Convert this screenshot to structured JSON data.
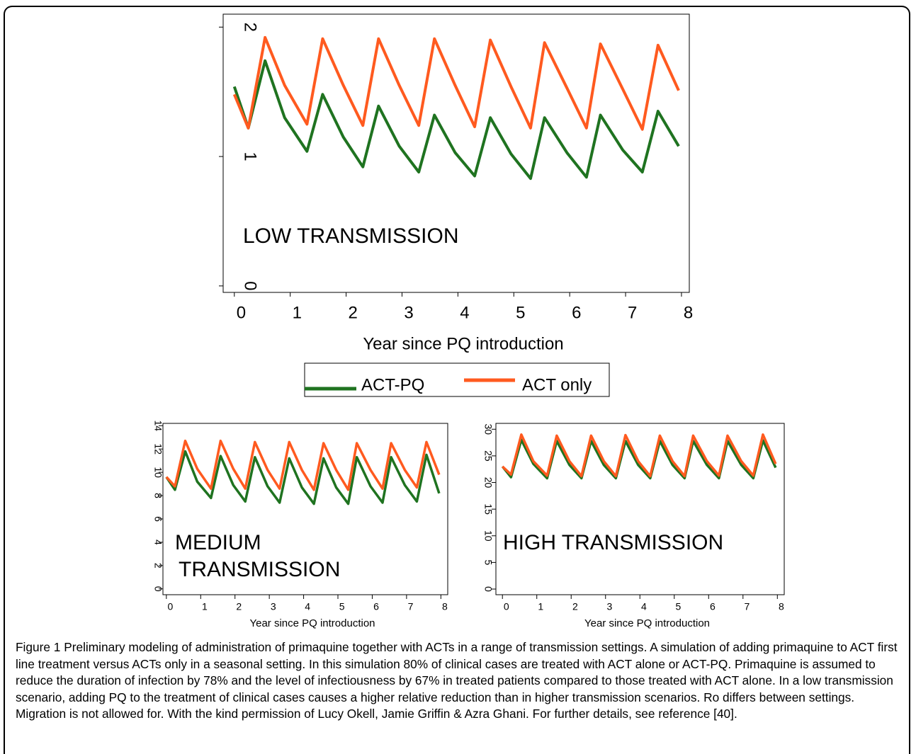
{
  "chart_data": [
    {
      "type": "line",
      "annotation_lines": [
        "LOW TRANSMISSION"
      ],
      "xlabel": "Year since PQ introduction",
      "x": [
        0,
        0.25,
        0.55,
        0.9,
        1.3,
        1.58,
        1.95,
        2.3,
        2.58,
        2.95,
        3.3,
        3.58,
        3.95,
        4.3,
        4.58,
        4.95,
        5.3,
        5.55,
        5.95,
        6.3,
        6.55,
        6.95,
        7.3,
        7.58,
        7.95
      ],
      "series": [
        {
          "name": "ACT-PQ",
          "color": "#1f7320",
          "values": [
            1.54,
            1.22,
            1.74,
            1.3,
            1.04,
            1.48,
            1.15,
            0.92,
            1.39,
            1.08,
            0.88,
            1.32,
            1.03,
            0.85,
            1.3,
            1.02,
            0.83,
            1.3,
            1.03,
            0.84,
            1.32,
            1.05,
            0.88,
            1.35,
            1.08
          ]
        },
        {
          "name": "ACT only",
          "color": "#ff5a1f",
          "values": [
            1.48,
            1.22,
            1.92,
            1.55,
            1.25,
            1.91,
            1.55,
            1.24,
            1.91,
            1.55,
            1.24,
            1.91,
            1.55,
            1.23,
            1.9,
            1.54,
            1.22,
            1.88,
            1.53,
            1.22,
            1.87,
            1.52,
            1.21,
            1.86,
            1.51
          ]
        }
      ],
      "xlim": [
        -0.2,
        8.14
      ],
      "ylim": [
        -0.05,
        2.1
      ],
      "xticks": [
        0,
        1,
        2,
        3,
        4,
        5,
        6,
        7,
        8
      ],
      "yticks": [
        0,
        1,
        2
      ]
    },
    {
      "type": "line",
      "annotation_lines": [
        "MEDIUM",
        "TRANSMISSION"
      ],
      "xlabel": "Year since PQ introduction",
      "x": [
        0,
        0.25,
        0.55,
        0.9,
        1.3,
        1.58,
        1.95,
        2.3,
        2.58,
        2.95,
        3.3,
        3.58,
        3.95,
        4.3,
        4.58,
        4.95,
        5.3,
        5.55,
        5.95,
        6.3,
        6.55,
        6.95,
        7.3,
        7.58,
        7.95
      ],
      "series": [
        {
          "name": "ACT-PQ",
          "color": "#1f7320",
          "values": [
            9.6,
            8.5,
            11.8,
            9.2,
            7.8,
            11.4,
            8.9,
            7.5,
            11.3,
            8.8,
            7.4,
            11.2,
            8.7,
            7.3,
            11.2,
            8.7,
            7.3,
            11.3,
            8.8,
            7.4,
            11.3,
            8.9,
            7.5,
            11.5,
            8.2
          ]
        },
        {
          "name": "ACT only",
          "color": "#ff5a1f",
          "values": [
            9.6,
            8.8,
            12.7,
            10.3,
            8.6,
            12.7,
            10.3,
            8.6,
            12.6,
            10.2,
            8.6,
            12.6,
            10.2,
            8.5,
            12.5,
            10.2,
            8.5,
            12.5,
            10.2,
            8.6,
            12.5,
            10.2,
            8.7,
            12.6,
            9.8
          ]
        }
      ],
      "xlim": [
        -0.1,
        8.2
      ],
      "ylim": [
        -0.5,
        14.2
      ],
      "xticks": [
        0,
        1,
        2,
        3,
        4,
        5,
        6,
        7,
        8
      ],
      "yticks": [
        0,
        2,
        4,
        6,
        8,
        10,
        12,
        14
      ]
    },
    {
      "type": "line",
      "annotation_lines": [
        "HIGH TRANSMISSION"
      ],
      "xlabel": "Year since PQ introduction",
      "x": [
        0,
        0.25,
        0.55,
        0.9,
        1.3,
        1.58,
        1.95,
        2.3,
        2.58,
        2.95,
        3.3,
        3.58,
        3.95,
        4.3,
        4.58,
        4.95,
        5.3,
        5.55,
        5.95,
        6.3,
        6.55,
        6.95,
        7.3,
        7.58,
        7.95
      ],
      "series": [
        {
          "name": "ACT-PQ",
          "color": "#1f7320",
          "values": [
            23,
            21,
            28,
            23.5,
            20.8,
            27.8,
            23.3,
            20.8,
            27.8,
            23.3,
            20.8,
            27.8,
            23.3,
            20.8,
            27.8,
            23.3,
            20.8,
            27.8,
            23.3,
            20.8,
            27.8,
            23.3,
            20.8,
            27.9,
            22.8
          ]
        },
        {
          "name": "ACT only",
          "color": "#ff5a1f",
          "values": [
            23,
            21.5,
            29,
            24,
            21.3,
            28.8,
            24,
            21.2,
            28.8,
            24,
            21.2,
            28.9,
            24,
            21.2,
            28.8,
            24,
            21.2,
            28.8,
            24,
            21.3,
            28.8,
            24,
            21.3,
            29,
            23.5
          ]
        }
      ],
      "xlim": [
        -0.19,
        8.2
      ],
      "ylim": [
        -1.06,
        31.1
      ],
      "xticks": [
        0,
        1,
        2,
        3,
        4,
        5,
        6,
        7,
        8
      ],
      "yticks": [
        0,
        5,
        10,
        15,
        20,
        25,
        30
      ]
    }
  ],
  "caption": "Figure 1 Preliminary modeling of administration of primaquine together with ACTs in a range of transmission settings. A simulation of adding primaquine to ACT first line treatment versus ACTs only in a seasonal setting. In this simulation 80% of clinical cases are treated with ACT alone or ACT-PQ. Primaquine is assumed to reduce the duration of infection by 78% and the level of infectiousness by 67% in treated patients compared to those treated with ACT alone. In a low transmission scenario, adding PQ to the treatment of clinical cases causes a higher relative reduction than in higher transmission scenarios. Ro differs between settings. Migration is not allowed for. With the kind permission of Lucy Okell, Jamie Griffin & Azra Ghani. For further details, see reference [40]."
}
